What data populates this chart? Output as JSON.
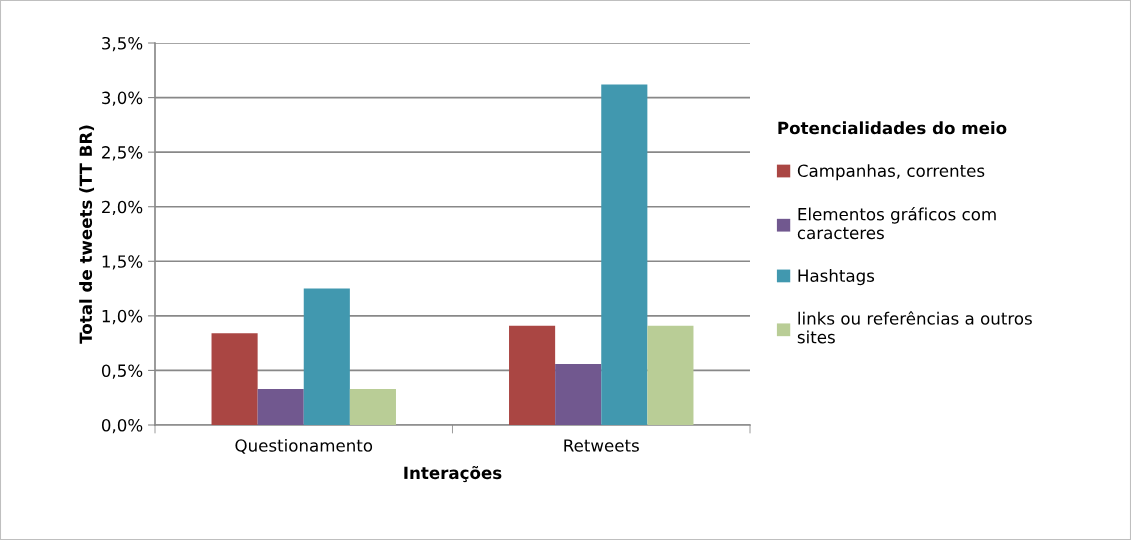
{
  "chart_data": {
    "type": "bar",
    "xlabel": "Interações",
    "ylabel": "Total de tweets (TT BR)",
    "legend_title": "Potencialidades do meio",
    "categories": [
      "Questionamento",
      "Retweets"
    ],
    "series": [
      {
        "name": "Campanhas, correntes",
        "color": "#aa4643",
        "values": [
          0.84,
          0.91
        ]
      },
      {
        "name": "Elementos gráficos com caracteres",
        "color": "#71588f",
        "values": [
          0.33,
          0.56
        ]
      },
      {
        "name": "Hashtags",
        "color": "#4198af",
        "values": [
          1.25,
          3.12
        ]
      },
      {
        "name": "links ou referências a outros sites",
        "color": "#b9cd96",
        "values": [
          0.33,
          0.91
        ]
      }
    ],
    "ylim": [
      0,
      3.5
    ],
    "yticks": [
      {
        "value": 0,
        "label": "0,0%"
      },
      {
        "value": 0.5,
        "label": "0,5%"
      },
      {
        "value": 1,
        "label": "1,0%"
      },
      {
        "value": 1.5,
        "label": "1,5%"
      },
      {
        "value": 2,
        "label": "2,0%"
      },
      {
        "value": 2.5,
        "label": "2,5%"
      },
      {
        "value": 3,
        "label": "3,0%"
      },
      {
        "value": 3.5,
        "label": "3,5%"
      }
    ],
    "grid": "y",
    "legend": "right"
  }
}
